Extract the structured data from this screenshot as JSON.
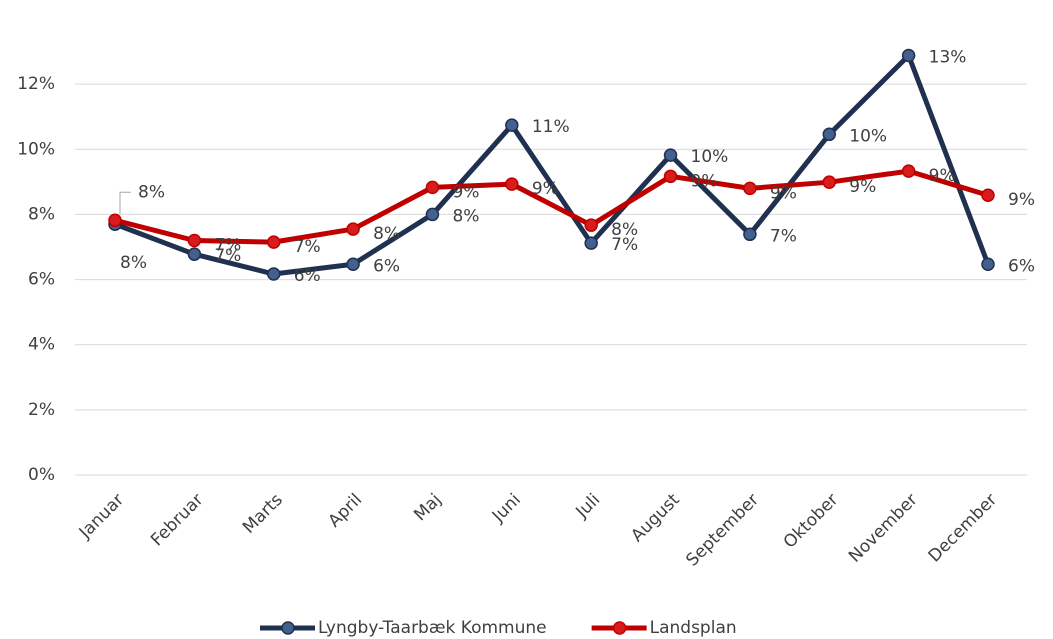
{
  "chart_data": {
    "type": "line",
    "categories": [
      "Januar",
      "Februar",
      "Marts",
      "April",
      "Maj",
      "Juni",
      "Juli",
      "August",
      "September",
      "Oktober",
      "November",
      "December"
    ],
    "series": [
      {
        "name": "Lyngby-Taarbæk Kommune",
        "color": "#1f3050",
        "values": [
          7.7,
          6.78,
          6.17,
          6.47,
          8.0,
          10.74,
          7.12,
          9.82,
          7.39,
          10.46,
          12.88,
          6.47
        ],
        "value_labels": [
          "8%",
          "7%",
          "6%",
          "6%",
          "8%",
          "11%",
          "7%",
          "10%",
          "7%",
          "10%",
          "13%",
          "6%"
        ]
      },
      {
        "name": "Landsplan",
        "color": "#c00000",
        "values": [
          7.82,
          7.2,
          7.15,
          7.55,
          8.83,
          8.93,
          7.67,
          9.17,
          8.8,
          8.99,
          9.33,
          8.59
        ],
        "value_labels": [
          "8%",
          "7%",
          "7%",
          "8%",
          "9%",
          "9%",
          "8%",
          "9%",
          "9%",
          "9%",
          "9%",
          "9%"
        ]
      }
    ],
    "ylim": [
      0,
      14
    ],
    "yticks": [
      {
        "value": 0,
        "label": "0%"
      },
      {
        "value": 2,
        "label": "2%"
      },
      {
        "value": 4,
        "label": "4%"
      },
      {
        "value": 6,
        "label": "6%"
      },
      {
        "value": 8,
        "label": "8%"
      },
      {
        "value": 10,
        "label": "10%"
      },
      {
        "value": 12,
        "label": "12%"
      }
    ],
    "grid": true,
    "legend": "bottom"
  }
}
